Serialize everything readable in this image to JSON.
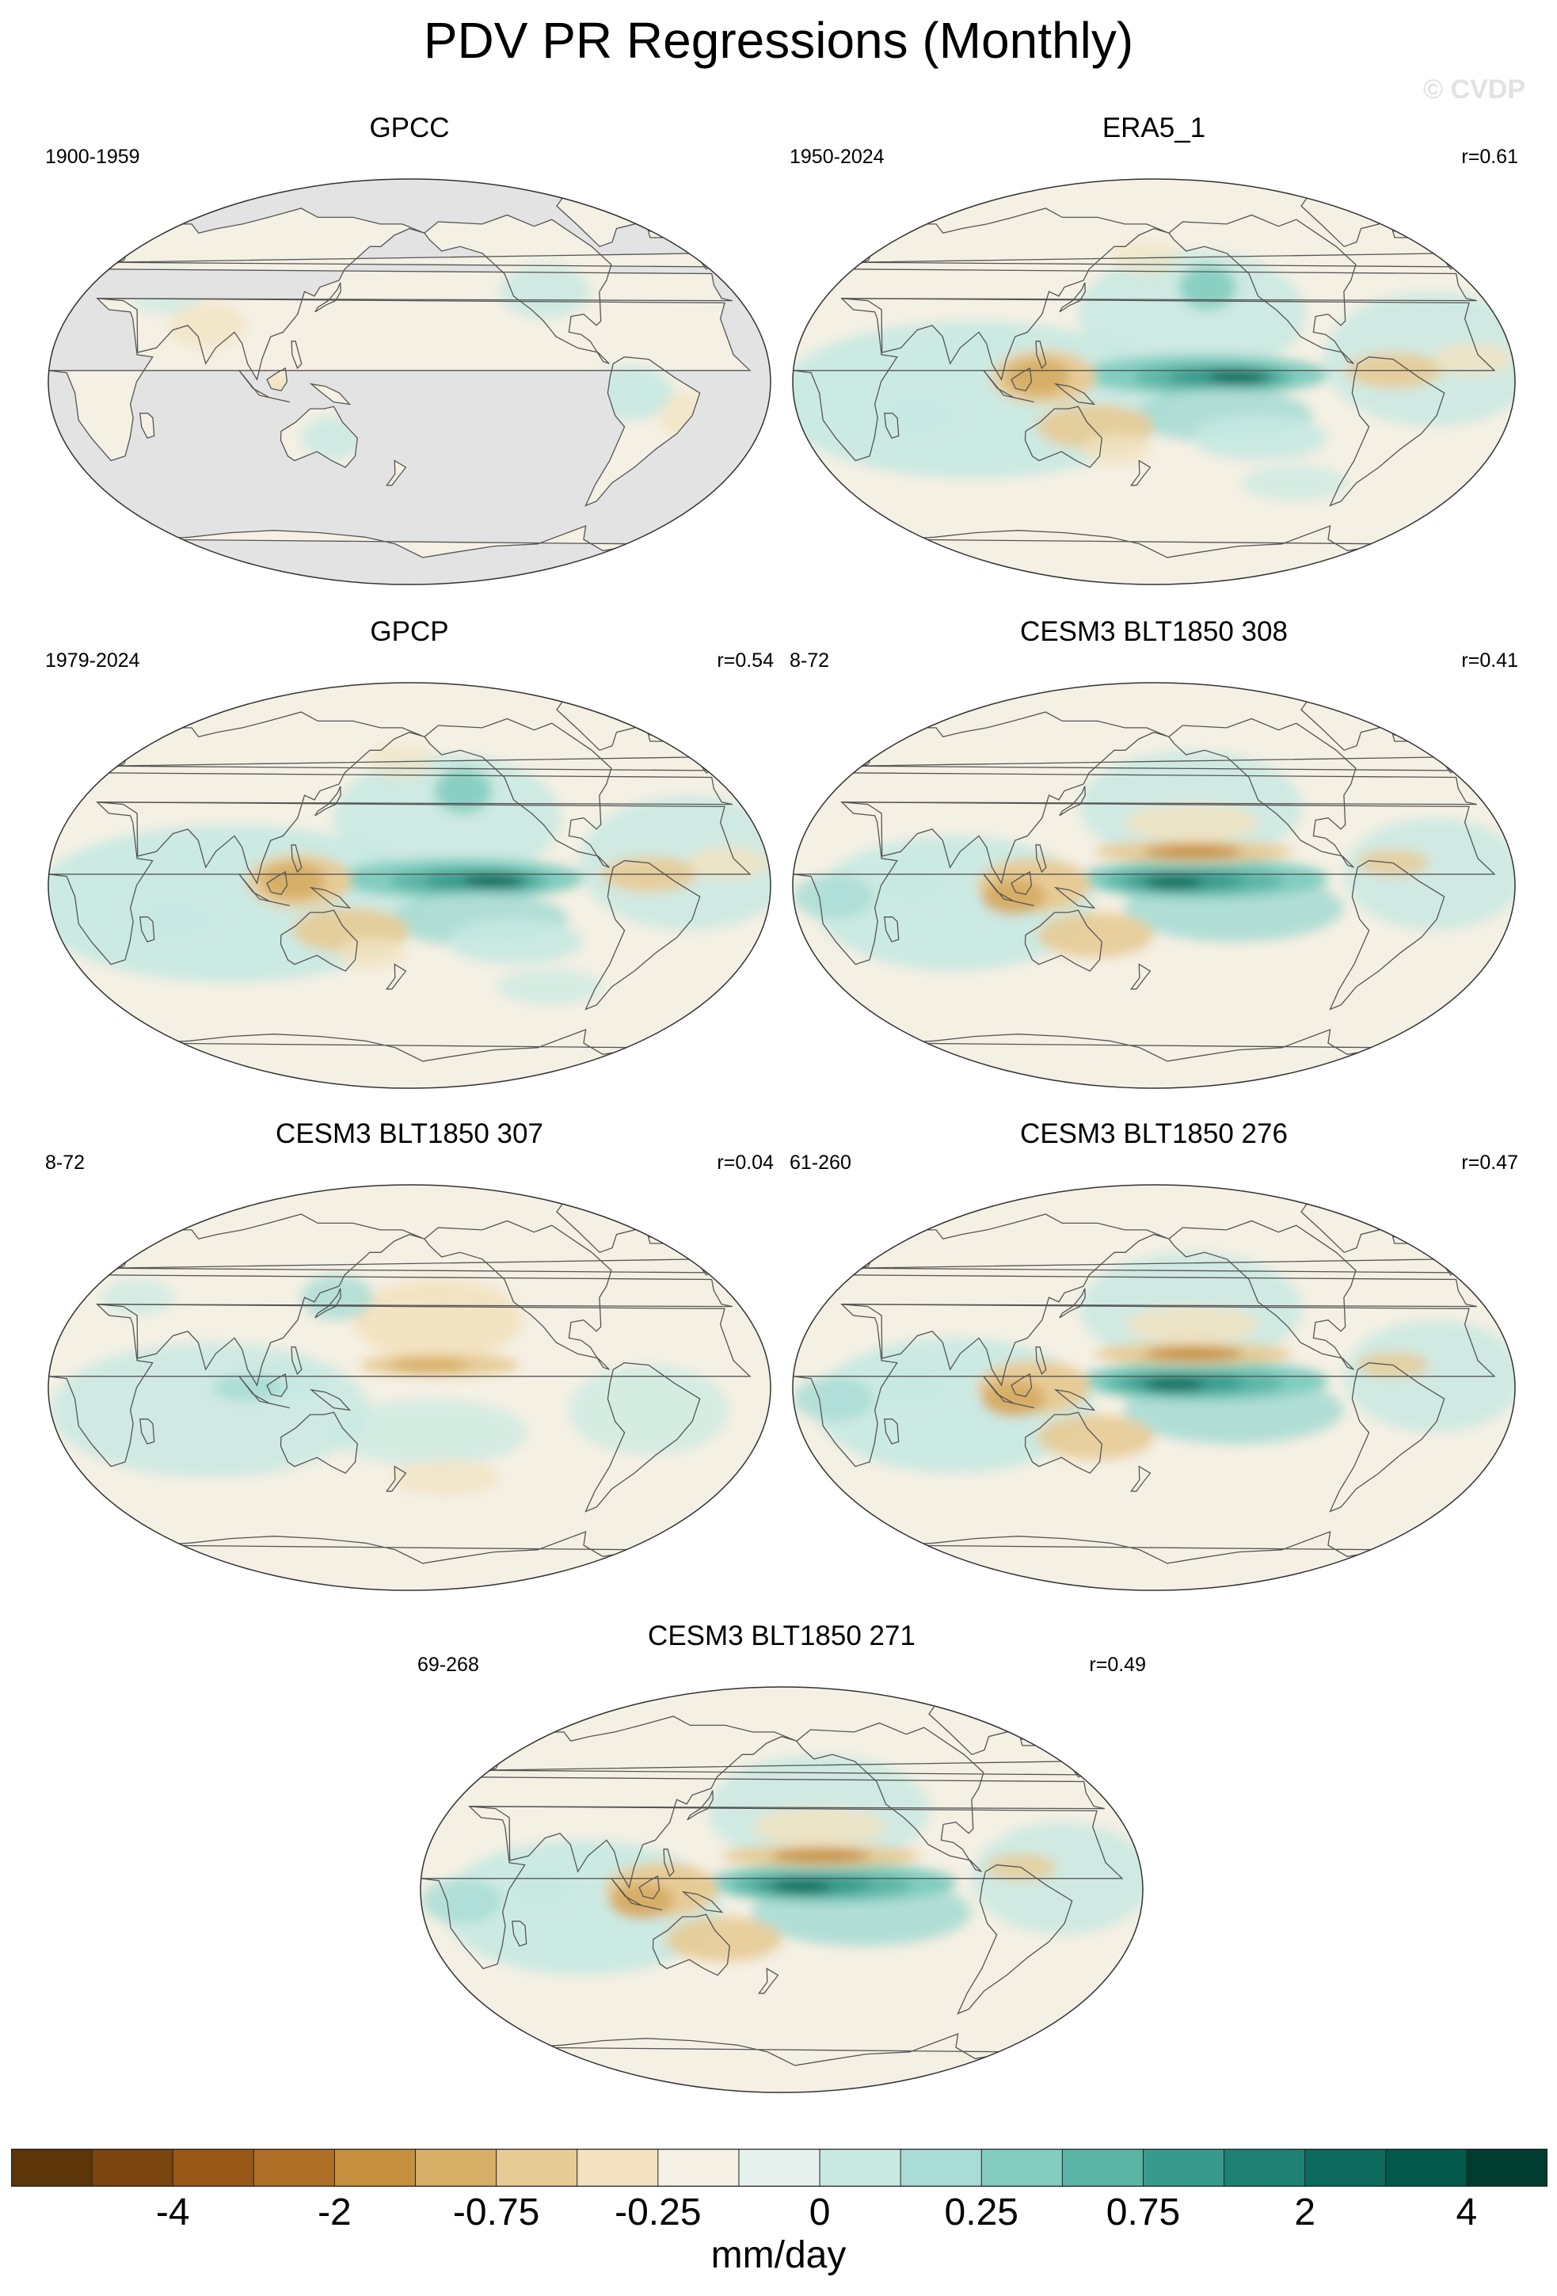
{
  "title": "PDV PR Regressions (Monthly)",
  "watermark": "© CVDP",
  "panels": [
    {
      "title": "GPCC",
      "period": "1900-1959",
      "corr": "",
      "missing_ocean": true,
      "pattern": "land"
    },
    {
      "title": "ERA5_1",
      "period": "1950-2024",
      "corr": "r=0.61",
      "missing_ocean": false,
      "pattern": "strong"
    },
    {
      "title": "GPCP",
      "period": "1979-2024",
      "corr": "r=0.54",
      "missing_ocean": false,
      "pattern": "strong"
    },
    {
      "title": "CESM3 BLT1850 308",
      "period": "8-72",
      "corr": "r=0.41",
      "missing_ocean": false,
      "pattern": "model"
    },
    {
      "title": "CESM3 BLT1850 307",
      "period": "8-72",
      "corr": "r=0.04",
      "missing_ocean": false,
      "pattern": "weak"
    },
    {
      "title": "CESM3 BLT1850 276",
      "period": "61-260",
      "corr": "r=0.47",
      "missing_ocean": false,
      "pattern": "model"
    },
    {
      "title": "CESM3 BLT1850 271",
      "period": "69-268",
      "corr": "r=0.49",
      "missing_ocean": false,
      "pattern": "model"
    }
  ],
  "colorbar": {
    "colors": [
      "#5c3608",
      "#7b4510",
      "#985818",
      "#b06f26",
      "#c68f3e",
      "#d7ae66",
      "#e7cb95",
      "#f2e2bf",
      "#f5f0e4",
      "#e6f1ee",
      "#c7e9e2",
      "#a8dcd4",
      "#82cdc0",
      "#5bb5a6",
      "#379a8c",
      "#1f8174",
      "#0d6a5c",
      "#02594c",
      "#003c30"
    ],
    "tick_labels": [
      "-4",
      "-2",
      "-0.75",
      "-0.25",
      "0",
      "0.25",
      "0.75",
      "2",
      "4"
    ],
    "units": "mm/day"
  }
}
